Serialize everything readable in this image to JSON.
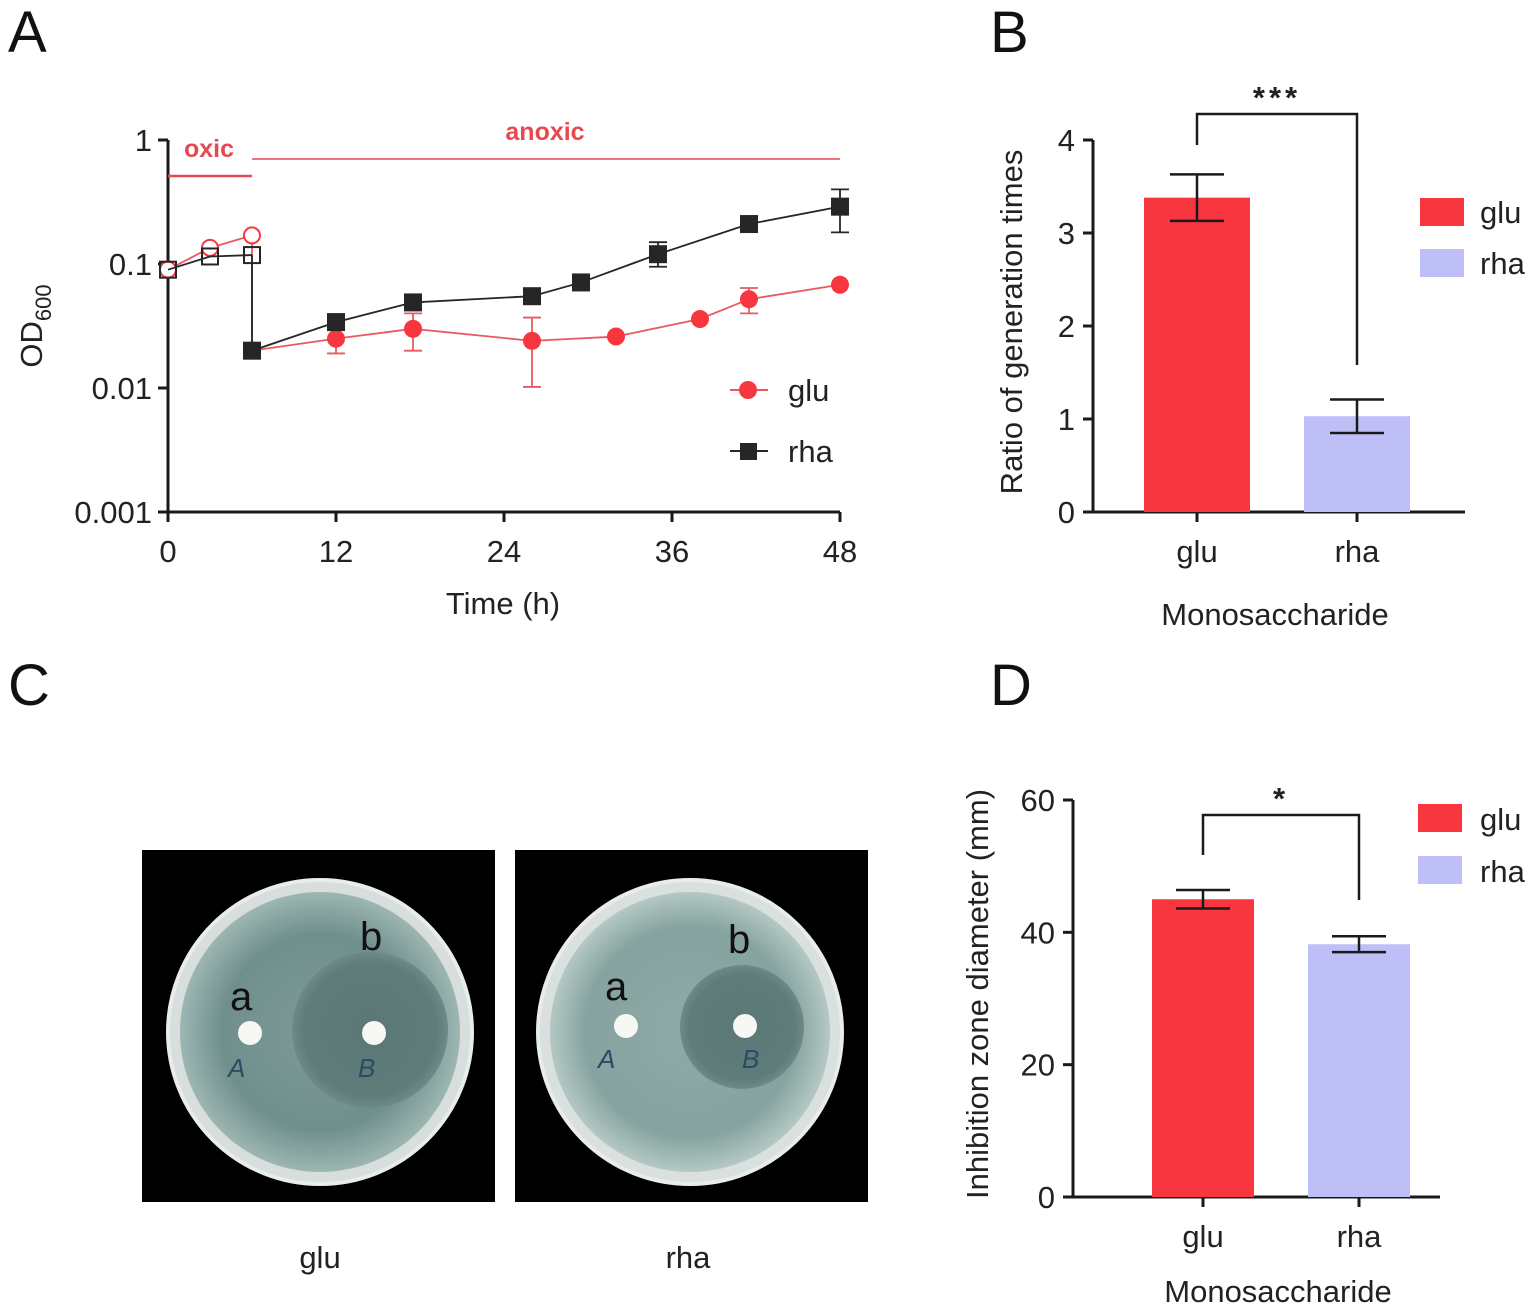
{
  "colors": {
    "glu": "#f7363f",
    "glu_line": "#e85a60",
    "rha": "#bfbff7",
    "rha_line": "#262626",
    "axis": "#1a1a1a",
    "region": "#e64950"
  },
  "panels": {
    "A": "A",
    "B": "B",
    "C": "C",
    "D": "D"
  },
  "chart_data": [
    {
      "id": "A",
      "type": "line",
      "title": "",
      "xlabel": "Time (h)",
      "ylabel": "OD",
      "ylabel_subscript": "600",
      "yscale": "log",
      "xlim": [
        0,
        48
      ],
      "ylim": [
        0.001,
        1
      ],
      "xticks": [
        0,
        12,
        24,
        36,
        48
      ],
      "xtick_labels": [
        "0",
        "12",
        "24",
        "36",
        "48"
      ],
      "yticks": [
        0.001,
        0.01,
        0.1,
        1
      ],
      "ytick_labels": [
        "0.001",
        "0.01",
        "0.1",
        "1"
      ],
      "regions": [
        {
          "label": "oxic",
          "x_start": 0,
          "x_end": 6
        },
        {
          "label": "anoxic",
          "x_start": 6,
          "x_end": 48
        }
      ],
      "legend": [
        "glu",
        "rha"
      ],
      "legend_position": "right",
      "series": [
        {
          "name": "glu",
          "marker": "circle",
          "oxic_points": [
            {
              "x": 0,
              "y": 0.09
            },
            {
              "x": 3,
              "y": 0.135
            },
            {
              "x": 6,
              "y": 0.17
            }
          ],
          "anoxic_points": [
            {
              "x": 6,
              "y": 0.02,
              "err_low": 0.02,
              "err_high": 0.02
            },
            {
              "x": 12,
              "y": 0.025,
              "err_low": 0.019,
              "err_high": 0.032
            },
            {
              "x": 17.5,
              "y": 0.03,
              "err_low": 0.02,
              "err_high": 0.04
            },
            {
              "x": 26,
              "y": 0.024,
              "err_low": 0.0102,
              "err_high": 0.037
            },
            {
              "x": 32,
              "y": 0.026,
              "err_low": 0.026,
              "err_high": 0.026
            },
            {
              "x": 38,
              "y": 0.036,
              "err_low": 0.036,
              "err_high": 0.036
            },
            {
              "x": 41.5,
              "y": 0.052,
              "err_low": 0.04,
              "err_high": 0.064
            },
            {
              "x": 48,
              "y": 0.068,
              "err_low": 0.068,
              "err_high": 0.068
            }
          ]
        },
        {
          "name": "rha",
          "marker": "square",
          "oxic_points": [
            {
              "x": 0,
              "y": 0.09
            },
            {
              "x": 3,
              "y": 0.115
            },
            {
              "x": 6,
              "y": 0.118
            }
          ],
          "anoxic_points": [
            {
              "x": 6,
              "y": 0.02,
              "err_low": 0.02,
              "err_high": 0.02
            },
            {
              "x": 12,
              "y": 0.034,
              "err_low": 0.034,
              "err_high": 0.034
            },
            {
              "x": 17.5,
              "y": 0.049,
              "err_low": 0.049,
              "err_high": 0.049
            },
            {
              "x": 26,
              "y": 0.055,
              "err_low": 0.055,
              "err_high": 0.055
            },
            {
              "x": 29.5,
              "y": 0.071,
              "err_low": 0.071,
              "err_high": 0.071
            },
            {
              "x": 35,
              "y": 0.12,
              "err_low": 0.095,
              "err_high": 0.15
            },
            {
              "x": 41.5,
              "y": 0.21,
              "err_low": 0.19,
              "err_high": 0.24
            },
            {
              "x": 48,
              "y": 0.29,
              "err_low": 0.18,
              "err_high": 0.4
            }
          ]
        }
      ]
    },
    {
      "id": "B",
      "type": "bar",
      "title": "",
      "xlabel": "Monosaccharide",
      "ylabel": "Ratio of generation times",
      "categories": [
        "glu",
        "rha"
      ],
      "values": [
        3.38,
        1.03
      ],
      "errors": [
        0.25,
        0.18
      ],
      "ylim": [
        0,
        4
      ],
      "yticks": [
        0,
        1,
        2,
        3,
        4
      ],
      "significance": "***",
      "legend": [
        "glu",
        "rha"
      ],
      "legend_position": "right"
    },
    {
      "id": "D",
      "type": "bar",
      "title": "",
      "xlabel": "Monosaccharide",
      "ylabel": "Inhibition zone diameter (mm)",
      "categories": [
        "glu",
        "rha"
      ],
      "values": [
        45,
        38.2
      ],
      "errors": [
        1.4,
        1.2
      ],
      "ylim": [
        0,
        60
      ],
      "yticks": [
        0,
        20,
        40,
        60
      ],
      "significance": "*",
      "legend": [
        "glu",
        "rha"
      ],
      "legend_position": "top-right"
    }
  ],
  "panel_c": {
    "plates": [
      {
        "caption": "glu",
        "labels": [
          "a",
          "b"
        ],
        "marks": [
          "A",
          "B"
        ]
      },
      {
        "caption": "rha",
        "labels": [
          "a",
          "b"
        ],
        "marks": [
          "A",
          "B"
        ]
      }
    ]
  }
}
